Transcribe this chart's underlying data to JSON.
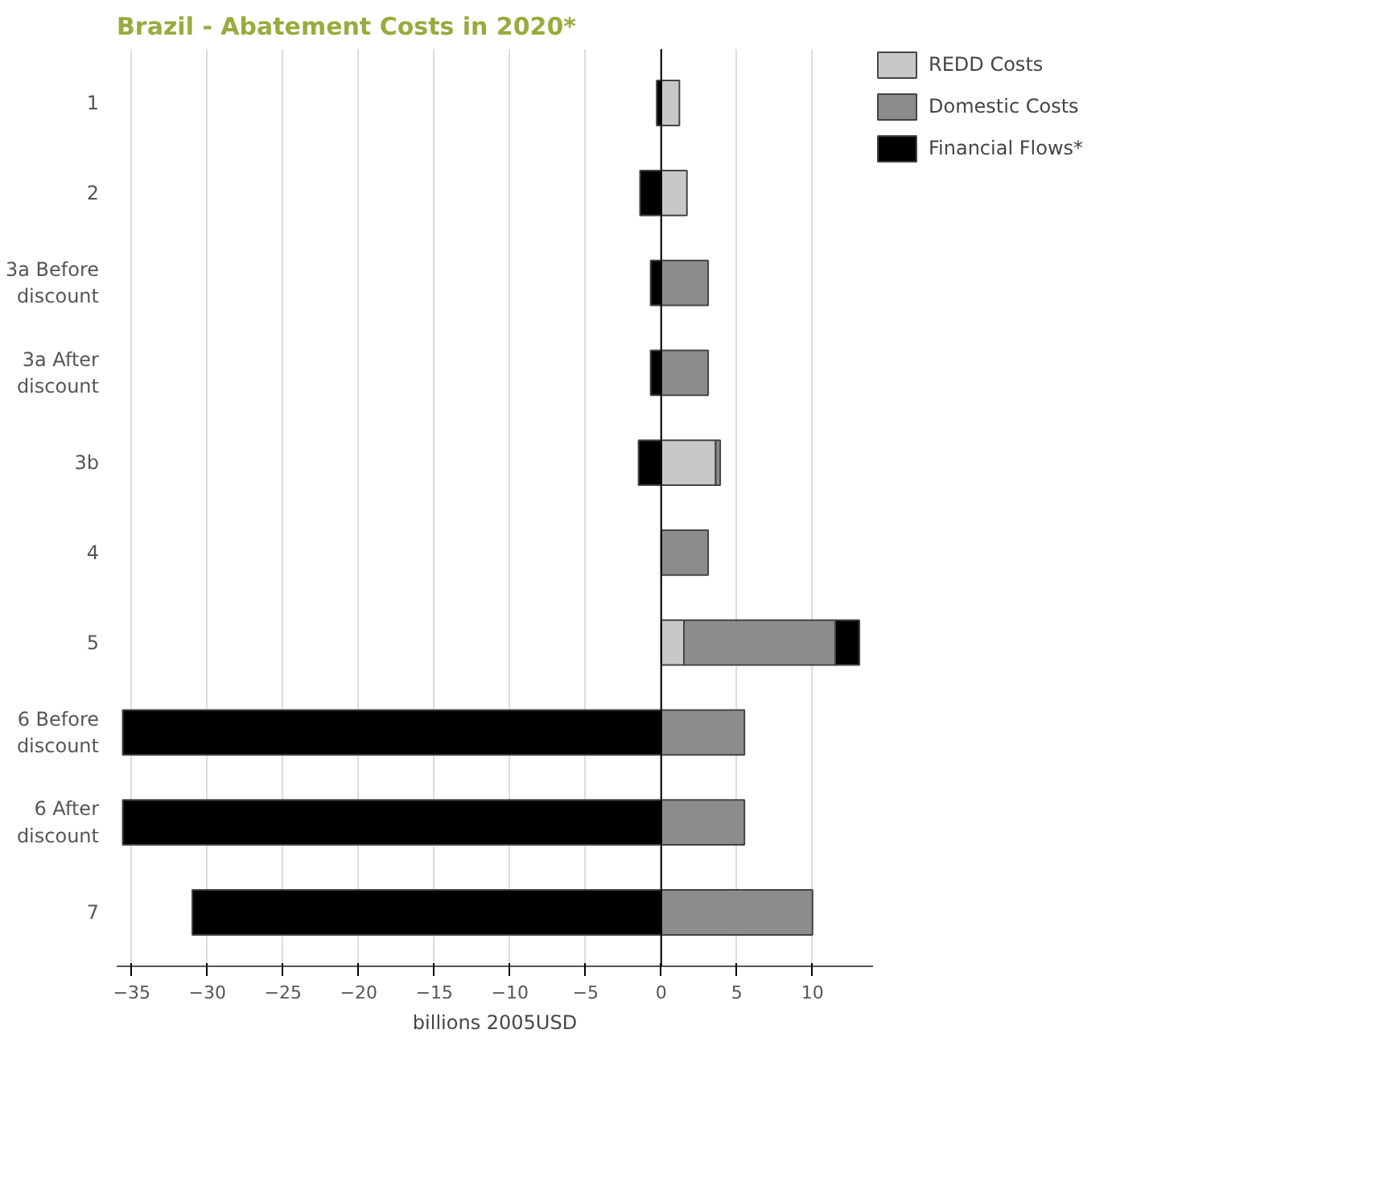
{
  "chart_data": {
    "type": "bar",
    "orientation": "horizontal",
    "stacked": true,
    "title": "Brazil - Abatement Costs in 2020*",
    "xlabel": "billions 2005USD",
    "categories": [
      "1",
      "2",
      "3a Before discount",
      "3a After discount",
      "3b",
      "4",
      "5",
      "6 Before discount",
      "6 After discount",
      "7"
    ],
    "series": [
      {
        "name": "REDD Costs",
        "color": "#c8c8c8",
        "values": [
          1.2,
          1.7,
          null,
          null,
          3.6,
          null,
          1.5,
          null,
          null,
          null
        ]
      },
      {
        "name": "Domestic Costs",
        "color": "#8c8c8c",
        "values": [
          null,
          null,
          3.1,
          3.1,
          0.3,
          3.1,
          10,
          5.5,
          5.5,
          10
        ]
      },
      {
        "name": "Financial Flows*",
        "color": "#000000",
        "values": [
          -0.3,
          -1.4,
          -0.7,
          -0.7,
          -1.5,
          null,
          1.6,
          -35.6,
          -35.6,
          -31
        ]
      }
    ],
    "xlim": [
      -36,
      14
    ],
    "xticks": [
      -35,
      -30,
      -25,
      -20,
      -15,
      -10,
      -5,
      0,
      5,
      10
    ],
    "ref_lines": [
      {
        "axis": "x",
        "value": 0,
        "color": "#000000"
      }
    ],
    "grid": "x",
    "legend": "top right"
  }
}
